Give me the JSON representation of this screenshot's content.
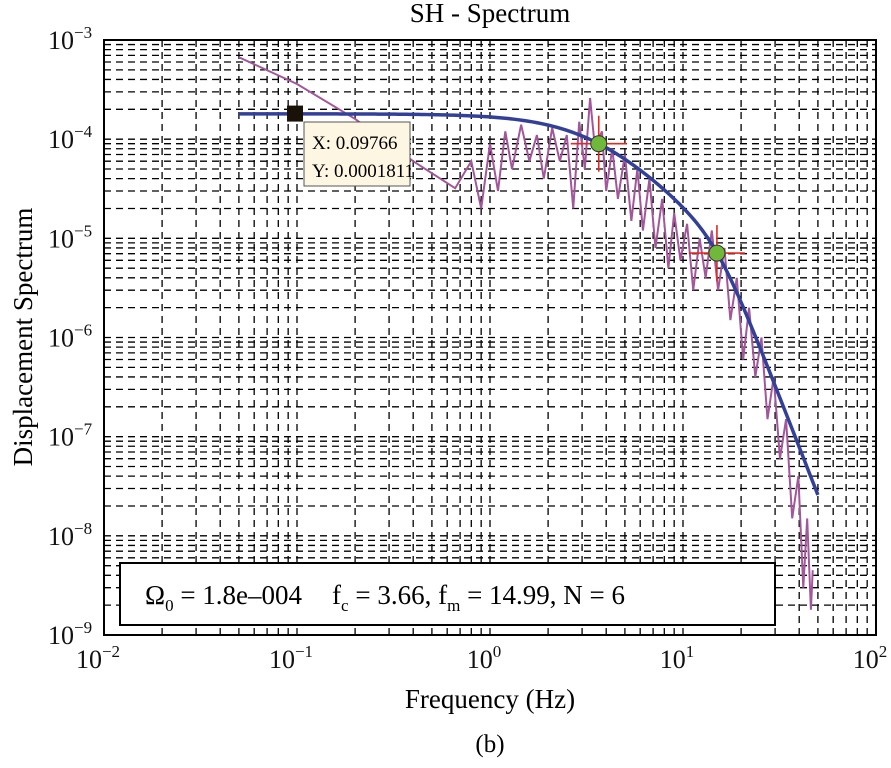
{
  "chart_data": {
    "type": "line",
    "title": "SH - Spectrum",
    "xlabel": "Frequency (Hz)",
    "ylabel": "Displacement Spectrum",
    "caption": "(b)",
    "x_scale": "log",
    "y_scale": "log",
    "xlim": [
      0.01,
      100
    ],
    "ylim": [
      1e-09,
      0.001
    ],
    "grid": true,
    "x_ticks": [
      {
        "base": "10",
        "exp": "−2"
      },
      {
        "base": "10",
        "exp": "−1"
      },
      {
        "base": "10",
        "exp": "0"
      },
      {
        "base": "10",
        "exp": "1"
      },
      {
        "base": "10",
        "exp": "2"
      }
    ],
    "y_ticks": [
      {
        "base": "10",
        "exp": "−3"
      },
      {
        "base": "10",
        "exp": "−4"
      },
      {
        "base": "10",
        "exp": "−5"
      },
      {
        "base": "10",
        "exp": "−6"
      },
      {
        "base": "10",
        "exp": "−7"
      },
      {
        "base": "10",
        "exp": "−8"
      },
      {
        "base": "10",
        "exp": "−9"
      }
    ],
    "colors": {
      "observed": "#a3579b",
      "model": "#33409a",
      "marker": "#6fb83a",
      "crosshair": "#e8281e",
      "tooltip_bg": "#fdf6e3"
    },
    "model": {
      "omega0": 0.00018,
      "fc": 3.66,
      "fm": 14.99,
      "N": 6,
      "f_range": [
        0.05,
        50
      ]
    },
    "observed": [
      [
        0.05,
        0.00067
      ],
      [
        0.1,
        0.00036
      ],
      [
        0.2,
        0.00016
      ],
      [
        0.4,
        6e-05
      ],
      [
        0.66,
        3.2e-05
      ],
      [
        0.8,
        6e-05
      ],
      [
        0.9,
        2e-05
      ],
      [
        1.0,
        9e-05
      ],
      [
        1.1,
        3e-05
      ],
      [
        1.2,
        0.00012
      ],
      [
        1.3,
        5e-05
      ],
      [
        1.45,
        0.00014
      ],
      [
        1.6,
        6e-05
      ],
      [
        1.75,
        0.00011
      ],
      [
        1.9,
        4e-05
      ],
      [
        2.1,
        0.00013
      ],
      [
        2.3,
        6e-05
      ],
      [
        2.5,
        0.00011
      ],
      [
        2.7,
        2e-05
      ],
      [
        2.9,
        0.00015
      ],
      [
        3.1,
        5e-05
      ],
      [
        3.3,
        0.00026
      ],
      [
        3.5,
        8e-05
      ],
      [
        3.8,
        0.00012
      ],
      [
        4.0,
        3e-05
      ],
      [
        4.3,
        8e-05
      ],
      [
        4.6,
        2.5e-05
      ],
      [
        5.0,
        7e-05
      ],
      [
        5.4,
        1.5e-05
      ],
      [
        5.8,
        5e-05
      ],
      [
        6.2,
        1.2e-05
      ],
      [
        6.7,
        4e-05
      ],
      [
        7.2,
        8e-06
      ],
      [
        7.8,
        2.5e-05
      ],
      [
        8.4,
        5e-06
      ],
      [
        9.0,
        1.8e-05
      ],
      [
        9.7,
        6e-06
      ],
      [
        10.5,
        1.4e-05
      ],
      [
        11.3,
        3e-06
      ],
      [
        12.2,
        1e-05
      ],
      [
        13.1,
        4e-06
      ],
      [
        14.1,
        1.2e-05
      ],
      [
        15.2,
        3e-06
      ],
      [
        16.4,
        8e-06
      ],
      [
        17.6,
        1.5e-06
      ],
      [
        19,
        4e-06
      ],
      [
        20.5,
        6e-07
      ],
      [
        22,
        2e-06
      ],
      [
        23.7,
        4e-07
      ],
      [
        25.5,
        1e-06
      ],
      [
        27.4,
        1.5e-07
      ],
      [
        29.5,
        4e-07
      ],
      [
        31.8,
        6e-08
      ],
      [
        34.2,
        1.5e-07
      ],
      [
        36.8,
        1.5e-08
      ],
      [
        39.6,
        4e-08
      ],
      [
        42,
        3e-09
      ],
      [
        44,
        1.5e-08
      ],
      [
        46,
        1.8e-09
      ],
      [
        47,
        4.5e-09
      ]
    ],
    "markers": [
      {
        "x": 3.66,
        "y": 9e-05
      },
      {
        "x": 14.99,
        "y": 7.1e-06
      }
    ],
    "datatip": {
      "x": 0.09766,
      "y": 0.0001811,
      "x_text": "X: 0.09766",
      "y_text": "Y: 0.0001811"
    },
    "annotation": {
      "omega": "Ω",
      "omega_sub": "0",
      "omega_val": " = 1.8e–004",
      "fc": "f",
      "fc_sub": "c",
      "fc_val": " = 3.66, ",
      "fm": "f",
      "fm_sub": "m",
      "fm_val": " = 14.99, N = 6"
    }
  }
}
